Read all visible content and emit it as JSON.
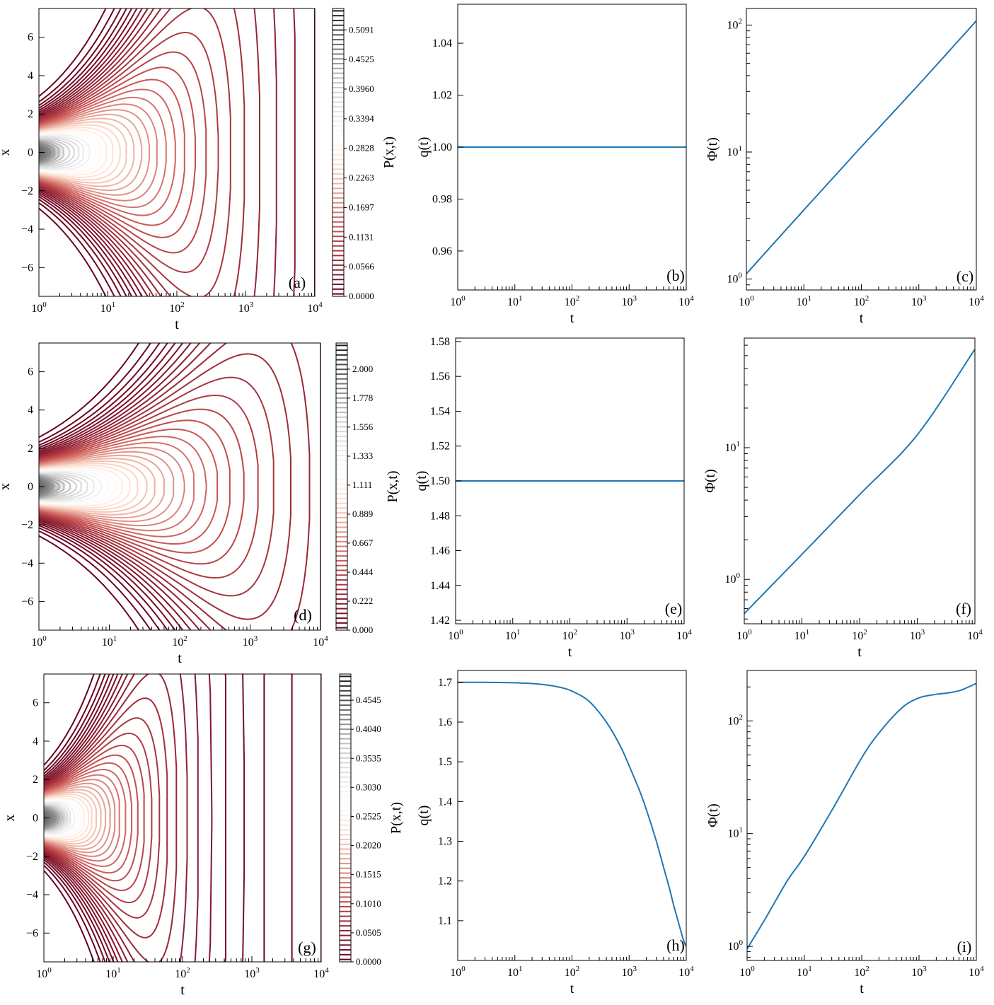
{
  "chart_data": [
    {
      "panel": "(a)",
      "type": "contour",
      "xlabel": "t",
      "ylabel": "x",
      "xscale": "log",
      "xlim": [
        1,
        10000
      ],
      "ylim": [
        -7.5,
        7.5
      ],
      "xticks": [
        1,
        10,
        100,
        1000,
        10000
      ],
      "xtick_labels": [
        [
          "10",
          "0"
        ],
        [
          "10",
          "1"
        ],
        [
          "10",
          "2"
        ],
        [
          "10",
          "3"
        ],
        [
          "10",
          "4"
        ]
      ],
      "yticks": [
        -6,
        -4,
        -2,
        0,
        2,
        4,
        6
      ],
      "ytick_labels": [
        "−6",
        "−4",
        "−2",
        "0",
        "2",
        "4",
        "6"
      ],
      "colorbar": {
        "label": "P(x,t)",
        "min": 0.0,
        "max": 0.55,
        "tick_values": [
          0.0,
          0.0566,
          0.1131,
          0.1697,
          0.2263,
          0.2828,
          0.3394,
          0.396,
          0.4525,
          0.5091
        ],
        "tick_labels": [
          "0.0000",
          "0.0566",
          "0.1131",
          "0.1697",
          "0.2263",
          "0.2828",
          "0.3394",
          "0.3960",
          "0.4525",
          "0.5091"
        ]
      },
      "field": {
        "peak": 0.55,
        "width0": 0.85,
        "growth": 0.9,
        "decay": 0.3,
        "extent": 7.5
      }
    },
    {
      "panel": "(b)",
      "type": "line",
      "xlabel": "t",
      "ylabel": "q(t)",
      "xscale": "log",
      "xlim": [
        1,
        10000
      ],
      "ylim": [
        0.945,
        1.055
      ],
      "xticks": [
        1,
        10,
        100,
        1000,
        10000
      ],
      "xtick_labels": [
        [
          "10",
          "0"
        ],
        [
          "10",
          "1"
        ],
        [
          "10",
          "2"
        ],
        [
          "10",
          "3"
        ],
        [
          "10",
          "4"
        ]
      ],
      "yticks": [
        0.96,
        0.98,
        1.0,
        1.02,
        1.04
      ],
      "ytick_labels": [
        "0.96",
        "0.98",
        "1.00",
        "1.02",
        "1.04"
      ],
      "series": [
        {
          "x": [
            1,
            10,
            100,
            1000,
            10000
          ],
          "y": [
            1.0,
            1.0,
            1.0,
            1.0,
            1.0
          ]
        }
      ]
    },
    {
      "panel": "(c)",
      "type": "line",
      "xlabel": "t",
      "ylabel": "Φ(t)",
      "xscale": "log",
      "yscale": "log",
      "xlim": [
        1,
        10000
      ],
      "ylim": [
        0.82,
        135
      ],
      "xticks": [
        1,
        10,
        100,
        1000,
        10000
      ],
      "xtick_labels": [
        [
          "10",
          "0"
        ],
        [
          "10",
          "1"
        ],
        [
          "10",
          "2"
        ],
        [
          "10",
          "3"
        ],
        [
          "10",
          "4"
        ]
      ],
      "yticks": [
        1,
        10,
        100
      ],
      "ytick_labels": [
        [
          "10",
          "0"
        ],
        [
          "10",
          "1"
        ],
        [
          "10",
          "2"
        ]
      ],
      "series": [
        {
          "x": [
            1,
            10,
            100,
            1000,
            10000
          ],
          "y": [
            1.1,
            3.5,
            11,
            34,
            108
          ]
        }
      ]
    },
    {
      "panel": "(d)",
      "type": "contour",
      "xlabel": "t",
      "ylabel": "x",
      "xscale": "log",
      "xlim": [
        1,
        10000
      ],
      "ylim": [
        -7.5,
        7.5
      ],
      "xticks": [
        1,
        10,
        100,
        1000,
        10000
      ],
      "xtick_labels": [
        [
          "10",
          "0"
        ],
        [
          "10",
          "1"
        ],
        [
          "10",
          "2"
        ],
        [
          "10",
          "3"
        ],
        [
          "10",
          "4"
        ]
      ],
      "yticks": [
        -6,
        -4,
        -2,
        0,
        2,
        4,
        6
      ],
      "ytick_labels": [
        "−6",
        "−4",
        "−2",
        "0",
        "2",
        "4",
        "6"
      ],
      "colorbar": {
        "label": "P(x,t)",
        "min": 0.0,
        "max": 2.2,
        "tick_values": [
          0.0,
          0.222,
          0.444,
          0.667,
          0.889,
          1.111,
          1.333,
          1.556,
          1.778,
          2.0
        ],
        "tick_labels": [
          "0.000",
          "0.222",
          "0.444",
          "0.667",
          "0.889",
          "1.111",
          "1.333",
          "1.556",
          "1.778",
          "2.000"
        ]
      },
      "field": {
        "peak": 2.2,
        "width0": 0.75,
        "growth": 0.7,
        "decay": 0.25,
        "extent": 7.5
      }
    },
    {
      "panel": "(e)",
      "type": "line",
      "xlabel": "t",
      "ylabel": "q(t)",
      "xscale": "log",
      "xlim": [
        1,
        10000
      ],
      "ylim": [
        1.418,
        1.582
      ],
      "xticks": [
        1,
        10,
        100,
        1000,
        10000
      ],
      "xtick_labels": [
        [
          "10",
          "0"
        ],
        [
          "10",
          "1"
        ],
        [
          "10",
          "2"
        ],
        [
          "10",
          "3"
        ],
        [
          "10",
          "4"
        ]
      ],
      "yticks": [
        1.42,
        1.44,
        1.46,
        1.48,
        1.5,
        1.52,
        1.54,
        1.56,
        1.58
      ],
      "ytick_labels": [
        "1.42",
        "1.44",
        "1.46",
        "1.48",
        "1.50",
        "1.52",
        "1.54",
        "1.56",
        "1.58"
      ],
      "series": [
        {
          "x": [
            1,
            10,
            100,
            1000,
            10000
          ],
          "y": [
            1.5,
            1.5,
            1.5,
            1.5,
            1.5
          ]
        }
      ]
    },
    {
      "panel": "(f)",
      "type": "line",
      "xlabel": "t",
      "ylabel": "Φ(t)",
      "xscale": "log",
      "yscale": "log",
      "xlim": [
        1,
        10000
      ],
      "ylim": [
        0.46,
        68
      ],
      "xticks": [
        1,
        10,
        100,
        1000,
        10000
      ],
      "xtick_labels": [
        [
          "10",
          "0"
        ],
        [
          "10",
          "1"
        ],
        [
          "10",
          "2"
        ],
        [
          "10",
          "3"
        ],
        [
          "10",
          "4"
        ]
      ],
      "yticks": [
        1,
        10
      ],
      "ytick_labels": [
        [
          "10",
          "0"
        ],
        [
          "10",
          "1"
        ]
      ],
      "series": [
        {
          "x": [
            1,
            10,
            100,
            1000,
            10000
          ],
          "y": [
            0.55,
            1.55,
            4.4,
            12.5,
            56
          ]
        }
      ]
    },
    {
      "panel": "(g)",
      "type": "contour",
      "xlabel": "t",
      "ylabel": "x",
      "xscale": "log",
      "xlim": [
        1,
        10000
      ],
      "ylim": [
        -7.5,
        7.5
      ],
      "xticks": [
        1,
        10,
        100,
        1000,
        10000
      ],
      "xtick_labels": [
        [
          "10",
          "0"
        ],
        [
          "10",
          "1"
        ],
        [
          "10",
          "2"
        ],
        [
          "10",
          "3"
        ],
        [
          "10",
          "4"
        ]
      ],
      "yticks": [
        -6,
        -4,
        -2,
        0,
        2,
        4,
        6
      ],
      "ytick_labels": [
        "−6",
        "−4",
        "−2",
        "0",
        "2",
        "4",
        "6"
      ],
      "colorbar": {
        "label": "P(x,t)",
        "min": 0.0,
        "max": 0.5,
        "tick_values": [
          0.0,
          0.0505,
          0.101,
          0.1515,
          0.202,
          0.2525,
          0.303,
          0.3535,
          0.404,
          0.4545
        ],
        "tick_labels": [
          "0.0000",
          "0.0505",
          "0.1010",
          "0.1515",
          "0.2020",
          "0.2525",
          "0.3030",
          "0.3535",
          "0.4040",
          "0.4545"
        ]
      },
      "field": {
        "peak": 0.5,
        "width0": 0.8,
        "growth": 1.3,
        "decay": 0.5,
        "extent": 7.5
      }
    },
    {
      "panel": "(h)",
      "type": "line",
      "xlabel": "t",
      "ylabel": "q(t)",
      "xscale": "log",
      "xlim": [
        1,
        10000
      ],
      "ylim": [
        1.0,
        1.73
      ],
      "xticks": [
        1,
        10,
        100,
        1000,
        10000
      ],
      "xtick_labels": [
        [
          "10",
          "0"
        ],
        [
          "10",
          "1"
        ],
        [
          "10",
          "2"
        ],
        [
          "10",
          "3"
        ],
        [
          "10",
          "4"
        ]
      ],
      "yticks": [
        1.1,
        1.2,
        1.3,
        1.4,
        1.5,
        1.6,
        1.7
      ],
      "ytick_labels": [
        "1.1",
        "1.2",
        "1.3",
        "1.4",
        "1.5",
        "1.6",
        "1.7"
      ],
      "series": [
        {
          "x": [
            1,
            3,
            10,
            30,
            60,
            100,
            200,
            400,
            700,
            1000,
            1500,
            2000,
            3000,
            4000,
            5000,
            6000,
            7000,
            8000,
            9000,
            10000
          ],
          "y": [
            1.7,
            1.7,
            1.699,
            1.695,
            1.688,
            1.678,
            1.652,
            1.6,
            1.54,
            1.49,
            1.43,
            1.38,
            1.3,
            1.235,
            1.185,
            1.14,
            1.105,
            1.075,
            1.05,
            1.035
          ]
        }
      ]
    },
    {
      "panel": "(i)",
      "type": "line",
      "xlabel": "t",
      "ylabel": "Φ(t)",
      "xscale": "log",
      "yscale": "log",
      "xlim": [
        1,
        10000
      ],
      "ylim": [
        0.75,
        280
      ],
      "xticks": [
        1,
        10,
        100,
        1000,
        10000
      ],
      "xtick_labels": [
        [
          "10",
          "0"
        ],
        [
          "10",
          "1"
        ],
        [
          "10",
          "2"
        ],
        [
          "10",
          "3"
        ],
        [
          "10",
          "4"
        ]
      ],
      "yticks": [
        1,
        10,
        100
      ],
      "ytick_labels": [
        [
          "10",
          "0"
        ],
        [
          "10",
          "1"
        ],
        [
          "10",
          "2"
        ]
      ],
      "series": [
        {
          "x": [
            1,
            2,
            5,
            10,
            30,
            100,
            200,
            500,
            1000,
            2000,
            3000,
            5000,
            7000,
            10000
          ],
          "y": [
            0.95,
            1.7,
            3.8,
            6.3,
            16,
            47,
            78,
            130,
            160,
            172,
            176,
            185,
            198,
            215
          ]
        }
      ]
    }
  ]
}
